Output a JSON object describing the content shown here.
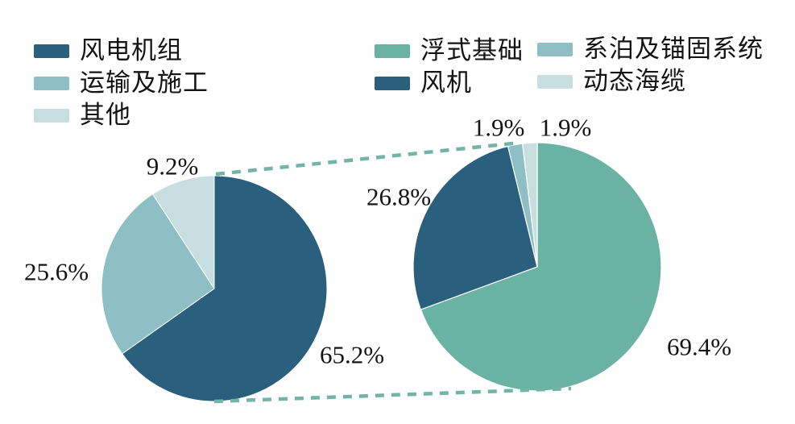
{
  "colors": {
    "background": "#ffffff",
    "text": "#141414",
    "dark_blue": "#2a5f7e",
    "teal_blue": "#8ebfc5",
    "light_blue": "#c8dfe2",
    "green": "#6ab2a3",
    "connector": "#72b5a6"
  },
  "legend_left": {
    "items": [
      {
        "label": "风电机组",
        "color": "#2a5f7e"
      },
      {
        "label": "运输及施工",
        "color": "#8ebfc5"
      },
      {
        "label": "其他",
        "color": "#c8dfe2"
      }
    ]
  },
  "legend_right": {
    "col1": [
      {
        "label": "浮式基础",
        "color": "#6ab2a3"
      },
      {
        "label": "风机",
        "color": "#2a5f7e"
      }
    ],
    "col2": [
      {
        "label": "系泊及锚固系统",
        "color": "#8ebfc5"
      },
      {
        "label": "动态海缆",
        "color": "#c8dfe2"
      }
    ]
  },
  "chart_data": [
    {
      "type": "pie",
      "start_angle_deg": 0,
      "direction": "clockwise",
      "legend_position": "top-left",
      "slices": [
        {
          "label": "风电机组",
          "value": 65.2,
          "pct_label": "65.2%",
          "color": "#2a5f7e"
        },
        {
          "label": "运输及施工",
          "value": 25.6,
          "pct_label": "25.6%",
          "color": "#8ebfc5"
        },
        {
          "label": "其他",
          "value": 9.2,
          "pct_label": "9.2%",
          "color": "#c8dfe2"
        }
      ]
    },
    {
      "type": "pie",
      "start_angle_deg": 0,
      "direction": "clockwise",
      "legend_position": "top-right",
      "slices": [
        {
          "label": "浮式基础",
          "value": 69.4,
          "pct_label": "69.4%",
          "color": "#6ab2a3"
        },
        {
          "label": "风机",
          "value": 26.8,
          "pct_label": "26.8%",
          "color": "#2a5f7e"
        },
        {
          "label": "系泊及锚固系统",
          "value": 1.9,
          "pct_label": "1.9%",
          "color": "#8ebfc5"
        },
        {
          "label": "动态海缆",
          "value": 1.9,
          "pct_label": "1.9%",
          "color": "#c8dfe2"
        }
      ]
    }
  ]
}
